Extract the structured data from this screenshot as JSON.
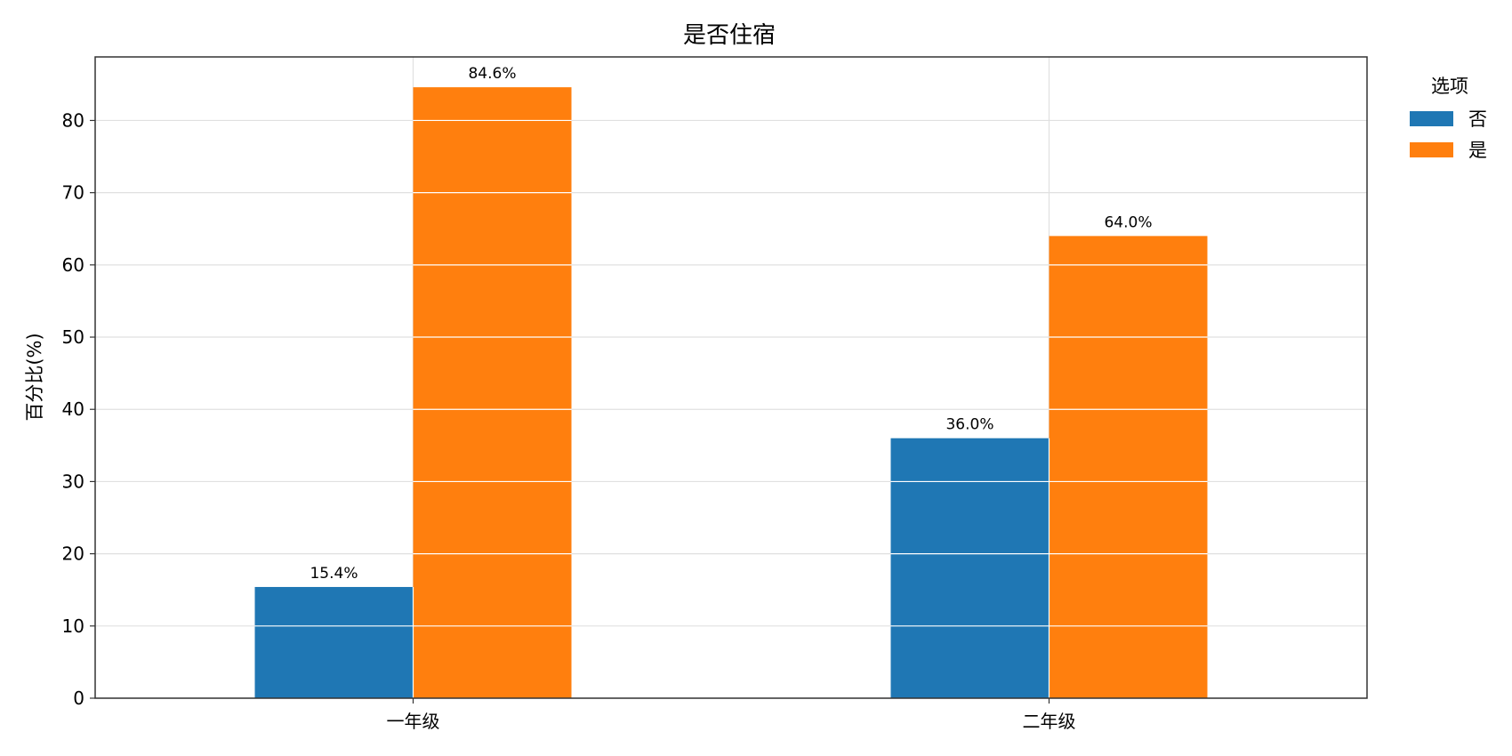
{
  "chart_data": {
    "type": "bar",
    "title": "是否住宿",
    "xlabel": "",
    "ylabel": "百分比(%)",
    "categories": [
      "一年级",
      "二年级"
    ],
    "series": [
      {
        "name": "否",
        "values": [
          15.4,
          36.0
        ],
        "color": "#1f77b4"
      },
      {
        "name": "是",
        "values": [
          84.6,
          64.0
        ],
        "color": "#ff7f0e"
      }
    ],
    "value_labels": [
      [
        "15.4%",
        "36.0%"
      ],
      [
        "84.6%",
        "64.0%"
      ]
    ],
    "ylim": [
      0,
      88.8
    ],
    "yticks": [
      0,
      10,
      20,
      30,
      40,
      50,
      60,
      70,
      80
    ],
    "grid": true,
    "legend": {
      "title": "选项",
      "position": "outside-right-top"
    }
  }
}
